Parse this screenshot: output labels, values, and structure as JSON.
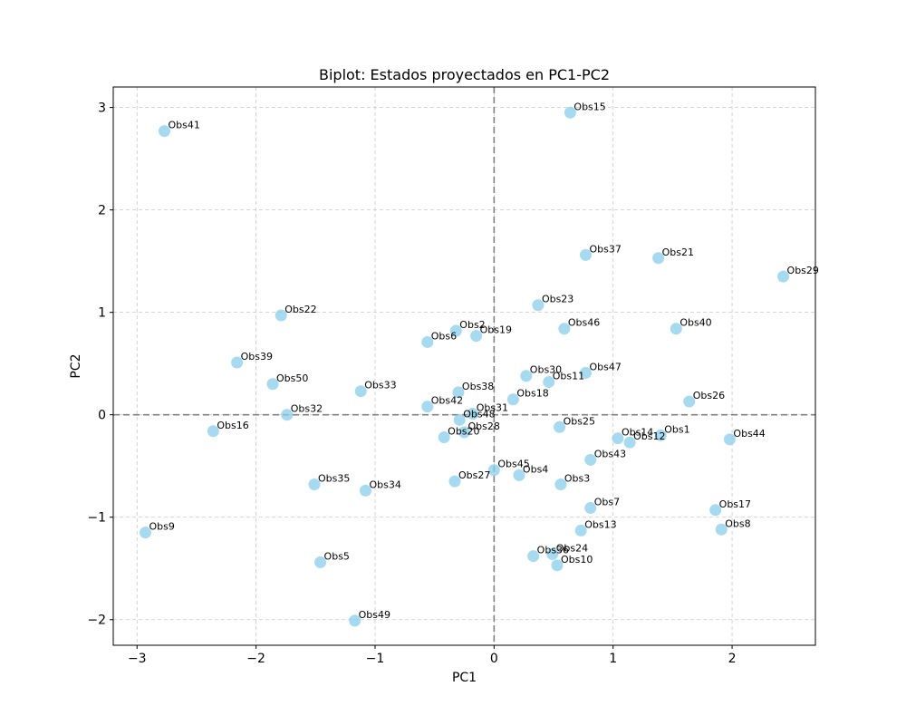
{
  "chart_data": {
    "type": "scatter",
    "title": "Biplot: Estados proyectados en PC1-PC2",
    "xlabel": "PC1",
    "ylabel": "PC2",
    "xlim": [
      -3.2,
      2.7
    ],
    "ylim": [
      -2.25,
      3.2
    ],
    "xticks": [
      -3,
      -2,
      -1,
      0,
      1,
      2
    ],
    "yticks": [
      -2,
      -1,
      0,
      1,
      2,
      3
    ],
    "xtick_labels": [
      "−3",
      "−2",
      "−1",
      "0",
      "1",
      "2"
    ],
    "ytick_labels": [
      "−2",
      "−1",
      "0",
      "1",
      "2",
      "3"
    ],
    "grid": true,
    "reference_lines": {
      "x": 0,
      "y": 0
    },
    "point_color": "#87ceeb",
    "points": [
      {
        "label": "Obs1",
        "x": 1.4,
        "y": -0.2
      },
      {
        "label": "Obs2",
        "x": -0.32,
        "y": 0.82
      },
      {
        "label": "Obs3",
        "x": 0.56,
        "y": -0.68
      },
      {
        "label": "Obs4",
        "x": 0.21,
        "y": -0.59
      },
      {
        "label": "Obs5",
        "x": -1.46,
        "y": -1.44
      },
      {
        "label": "Obs6",
        "x": -0.56,
        "y": 0.71
      },
      {
        "label": "Obs7",
        "x": 0.81,
        "y": -0.91
      },
      {
        "label": "Obs8",
        "x": 1.91,
        "y": -1.12
      },
      {
        "label": "Obs9",
        "x": -2.93,
        "y": -1.15
      },
      {
        "label": "Obs10",
        "x": 0.53,
        "y": -1.47
      },
      {
        "label": "Obs11",
        "x": 0.46,
        "y": 0.32
      },
      {
        "label": "Obs12",
        "x": 1.14,
        "y": -0.27
      },
      {
        "label": "Obs13",
        "x": 0.73,
        "y": -1.13
      },
      {
        "label": "Obs14",
        "x": 1.04,
        "y": -0.23
      },
      {
        "label": "Obs15",
        "x": 0.64,
        "y": 2.95
      },
      {
        "label": "Obs16",
        "x": -2.36,
        "y": -0.16
      },
      {
        "label": "Obs17",
        "x": 1.86,
        "y": -0.93
      },
      {
        "label": "Obs18",
        "x": 0.16,
        "y": 0.15
      },
      {
        "label": "Obs19",
        "x": -0.15,
        "y": 0.77
      },
      {
        "label": "Obs20",
        "x": -0.42,
        "y": -0.22
      },
      {
        "label": "Obs21",
        "x": 1.38,
        "y": 1.53
      },
      {
        "label": "Obs22",
        "x": -1.79,
        "y": 0.97
      },
      {
        "label": "Obs23",
        "x": 0.37,
        "y": 1.07
      },
      {
        "label": "Obs24",
        "x": 0.49,
        "y": -1.36
      },
      {
        "label": "Obs25",
        "x": 0.55,
        "y": -0.12
      },
      {
        "label": "Obs26",
        "x": 1.64,
        "y": 0.13
      },
      {
        "label": "Obs27",
        "x": -0.33,
        "y": -0.65
      },
      {
        "label": "Obs28",
        "x": -0.25,
        "y": -0.17
      },
      {
        "label": "Obs29",
        "x": 2.43,
        "y": 1.35
      },
      {
        "label": "Obs30",
        "x": 0.27,
        "y": 0.38
      },
      {
        "label": "Obs31",
        "x": -0.18,
        "y": 0.01
      },
      {
        "label": "Obs32",
        "x": -1.74,
        "y": 0.0
      },
      {
        "label": "Obs33",
        "x": -1.12,
        "y": 0.23
      },
      {
        "label": "Obs34",
        "x": -1.08,
        "y": -0.74
      },
      {
        "label": "Obs35",
        "x": -1.51,
        "y": -0.68
      },
      {
        "label": "Obs36",
        "x": 0.33,
        "y": -1.38
      },
      {
        "label": "Obs37",
        "x": 0.77,
        "y": 1.56
      },
      {
        "label": "Obs38",
        "x": -0.3,
        "y": 0.22
      },
      {
        "label": "Obs39",
        "x": -2.16,
        "y": 0.51
      },
      {
        "label": "Obs40",
        "x": 1.53,
        "y": 0.84
      },
      {
        "label": "Obs41",
        "x": -2.77,
        "y": 2.77
      },
      {
        "label": "Obs42",
        "x": -0.56,
        "y": 0.08
      },
      {
        "label": "Obs43",
        "x": 0.81,
        "y": -0.44
      },
      {
        "label": "Obs44",
        "x": 1.98,
        "y": -0.24
      },
      {
        "label": "Obs45",
        "x": 0.0,
        "y": -0.54
      },
      {
        "label": "Obs46",
        "x": 0.59,
        "y": 0.84
      },
      {
        "label": "Obs47",
        "x": 0.77,
        "y": 0.41
      },
      {
        "label": "Obs48",
        "x": -0.29,
        "y": -0.05
      },
      {
        "label": "Obs49",
        "x": -1.17,
        "y": -2.01
      },
      {
        "label": "Obs50",
        "x": -1.86,
        "y": 0.3
      }
    ]
  }
}
